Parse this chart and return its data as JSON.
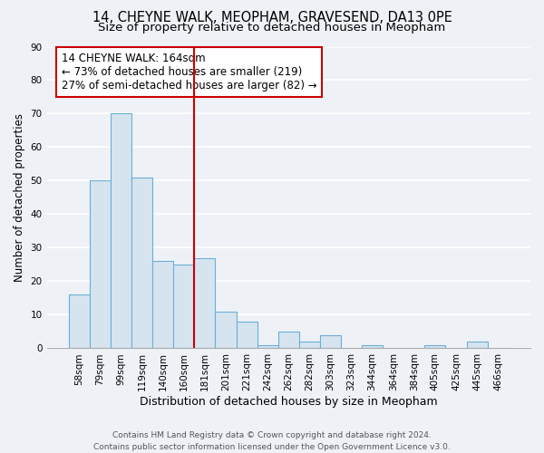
{
  "title": "14, CHEYNE WALK, MEOPHAM, GRAVESEND, DA13 0PE",
  "subtitle": "Size of property relative to detached houses in Meopham",
  "xlabel": "Distribution of detached houses by size in Meopham",
  "ylabel": "Number of detached properties",
  "categories": [
    "58sqm",
    "79sqm",
    "99sqm",
    "119sqm",
    "140sqm",
    "160sqm",
    "181sqm",
    "201sqm",
    "221sqm",
    "242sqm",
    "262sqm",
    "282sqm",
    "303sqm",
    "323sqm",
    "344sqm",
    "364sqm",
    "384sqm",
    "405sqm",
    "425sqm",
    "445sqm",
    "466sqm"
  ],
  "values": [
    16,
    50,
    70,
    51,
    26,
    25,
    27,
    11,
    8,
    1,
    5,
    2,
    4,
    0,
    1,
    0,
    0,
    1,
    0,
    2,
    0
  ],
  "bar_color": "#d6e4f0",
  "bar_edge_color": "#6baed6",
  "vline_x_index": 5,
  "vline_color": "#cc0000",
  "annotation_title": "14 CHEYNE WALK: 164sqm",
  "annotation_line1": "← 73% of detached houses are smaller (219)",
  "annotation_line2": "27% of semi-detached houses are larger (82) →",
  "annotation_box_color": "#ffffff",
  "annotation_box_edge": "#cc0000",
  "ylim": [
    0,
    90
  ],
  "yticks": [
    0,
    10,
    20,
    30,
    40,
    50,
    60,
    70,
    80,
    90
  ],
  "background_color": "#eef2f7",
  "plot_background": "#eef2f7",
  "grid_color": "#ffffff",
  "footer_line1": "Contains HM Land Registry data © Crown copyright and database right 2024.",
  "footer_line2": "Contains public sector information licensed under the Open Government Licence v3.0.",
  "title_fontsize": 10.5,
  "subtitle_fontsize": 9.5,
  "xlabel_fontsize": 9,
  "ylabel_fontsize": 8.5,
  "tick_fontsize": 7.5,
  "annotation_fontsize": 8.5,
  "footer_fontsize": 6.5
}
